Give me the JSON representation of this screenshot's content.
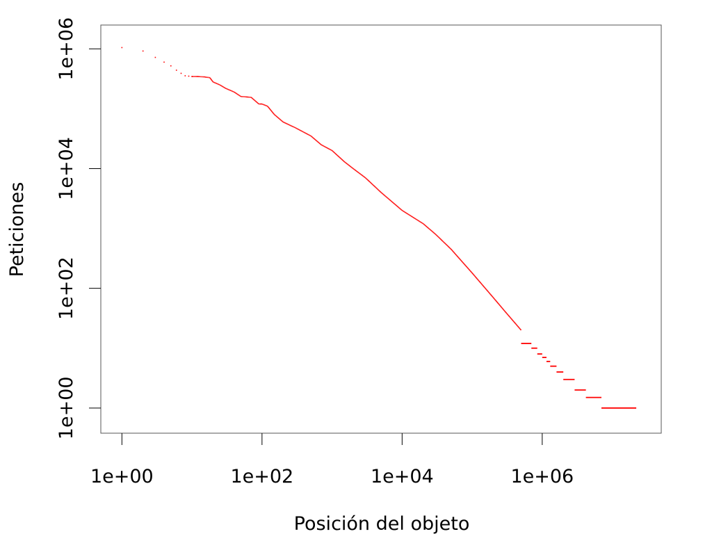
{
  "chart_data": {
    "type": "scatter",
    "title": "",
    "xlabel": "Posición del objeto",
    "ylabel": "Peticiones",
    "x_scale": "log",
    "y_scale": "log",
    "xlim": [
      0.5,
      50000000
    ],
    "ylim": [
      0.38,
      2500000
    ],
    "x_ticks": [
      {
        "value": 1,
        "label": "1e+00"
      },
      {
        "value": 100,
        "label": "1e+02"
      },
      {
        "value": 10000,
        "label": "1e+04"
      },
      {
        "value": 1000000,
        "label": "1e+06"
      }
    ],
    "y_ticks": [
      {
        "value": 1,
        "label": "1e+00"
      },
      {
        "value": 100,
        "label": "1e+02"
      },
      {
        "value": 10000,
        "label": "1e+04"
      },
      {
        "value": 1000000,
        "label": "1e+06"
      }
    ],
    "grid": false,
    "legend": "none",
    "series_color": "#ff0000",
    "series": [
      {
        "x": [
          1,
          2,
          3,
          4,
          5,
          6,
          7,
          8,
          9,
          10,
          12,
          15,
          18,
          20,
          25,
          30,
          40,
          50,
          70,
          90,
          100,
          120,
          150,
          200,
          300,
          500,
          700,
          1000,
          1500,
          2000,
          3000,
          5000,
          10000,
          20000,
          30000,
          50000,
          100000,
          200000,
          300000,
          500000,
          700000,
          1000000,
          1300000,
          1600000,
          2000000,
          3000000,
          4000000,
          5000000,
          7000000,
          10000000,
          15000000,
          22000000
        ],
        "y": [
          1050000,
          920000,
          720000,
          600000,
          520000,
          440000,
          390000,
          355000,
          350000,
          345000,
          345000,
          340000,
          330000,
          280000,
          250000,
          220000,
          190000,
          160000,
          155000,
          120000,
          120000,
          110000,
          80000,
          60000,
          48000,
          35000,
          25000,
          20000,
          13000,
          10000,
          7000,
          4000,
          2000,
          1200,
          800,
          450,
          180,
          70,
          40,
          20,
          12,
          8,
          6,
          5,
          4,
          3,
          2.2,
          2,
          1.5,
          1.2,
          1,
          1
        ]
      }
    ]
  }
}
